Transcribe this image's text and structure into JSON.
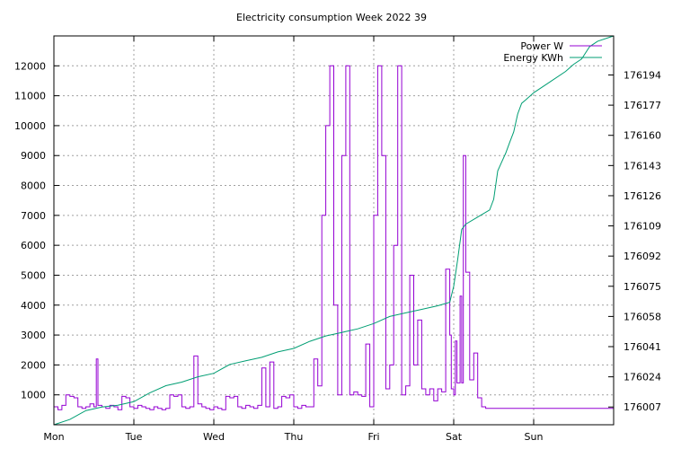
{
  "chart_data": {
    "type": "line",
    "title": "Electricity consumption Week 2022 39",
    "x_tick_labels": [
      "Mon",
      "Tue",
      "Wed",
      "Thu",
      "Fri",
      "Sat",
      "Sun"
    ],
    "x_range_days": [
      0,
      7
    ],
    "y_left": {
      "ticks": [
        1000,
        2000,
        3000,
        4000,
        5000,
        6000,
        7000,
        8000,
        9000,
        10000,
        11000,
        12000
      ],
      "ylim": [
        0,
        13000
      ]
    },
    "y_right": {
      "ticks": [
        176007,
        176024,
        176041,
        176058,
        176075,
        176092,
        176109,
        176126,
        176143,
        176160,
        176177,
        176194
      ],
      "ylim": [
        175997,
        176216
      ]
    },
    "grid": true,
    "legend_position": "top-right",
    "series": [
      {
        "name": "Power W",
        "axis": "left",
        "color": "#9400d3",
        "x_days": [
          0.0,
          0.05,
          0.1,
          0.15,
          0.2,
          0.25,
          0.3,
          0.35,
          0.4,
          0.45,
          0.5,
          0.53,
          0.55,
          0.6,
          0.65,
          0.7,
          0.75,
          0.8,
          0.85,
          0.9,
          0.95,
          1.0,
          1.05,
          1.1,
          1.15,
          1.2,
          1.25,
          1.3,
          1.35,
          1.4,
          1.45,
          1.5,
          1.55,
          1.6,
          1.65,
          1.7,
          1.75,
          1.8,
          1.85,
          1.9,
          1.95,
          2.0,
          2.05,
          2.1,
          2.15,
          2.2,
          2.25,
          2.3,
          2.35,
          2.4,
          2.45,
          2.5,
          2.55,
          2.6,
          2.65,
          2.7,
          2.75,
          2.8,
          2.85,
          2.9,
          2.95,
          3.0,
          3.05,
          3.1,
          3.15,
          3.2,
          3.25,
          3.3,
          3.35,
          3.4,
          3.45,
          3.5,
          3.55,
          3.6,
          3.65,
          3.7,
          3.75,
          3.8,
          3.85,
          3.9,
          3.95,
          4.0,
          4.05,
          4.1,
          4.15,
          4.2,
          4.25,
          4.3,
          4.35,
          4.4,
          4.45,
          4.5,
          4.55,
          4.6,
          4.65,
          4.7,
          4.75,
          4.8,
          4.85,
          4.9,
          4.95,
          4.97,
          5.0,
          5.02,
          5.04,
          5.06,
          5.08,
          5.1,
          5.12,
          5.15,
          5.2,
          5.25,
          5.3,
          5.35,
          5.4,
          5.45,
          5.5,
          5.55,
          5.6,
          5.65,
          5.7,
          5.75,
          5.8,
          5.85,
          5.9,
          5.95,
          6.0,
          6.05,
          6.1,
          6.15,
          6.2,
          6.25,
          6.3,
          6.35,
          6.4,
          6.45,
          6.5,
          6.55,
          6.6,
          6.65,
          6.7,
          6.75,
          6.8,
          6.85,
          6.9,
          6.95,
          7.0
        ],
        "values": [
          600,
          500,
          650,
          1000,
          950,
          900,
          600,
          550,
          600,
          700,
          600,
          2200,
          650,
          600,
          550,
          650,
          600,
          500,
          950,
          900,
          600,
          550,
          650,
          600,
          550,
          500,
          600,
          550,
          500,
          550,
          1000,
          950,
          1000,
          600,
          550,
          600,
          2300,
          700,
          600,
          550,
          500,
          600,
          550,
          500,
          950,
          900,
          950,
          600,
          550,
          650,
          600,
          550,
          650,
          1900,
          600,
          2100,
          550,
          600,
          950,
          900,
          1000,
          600,
          550,
          650,
          600,
          600,
          2200,
          1300,
          7000,
          10000,
          12000,
          4000,
          1000,
          9000,
          12000,
          1000,
          1100,
          1000,
          950,
          2700,
          600,
          7000,
          12000,
          9000,
          1200,
          2000,
          6000,
          12000,
          1000,
          1300,
          5000,
          2000,
          3500,
          1200,
          1000,
          1200,
          800,
          1200,
          1100,
          5200,
          3000,
          1200,
          1000,
          2800,
          1400,
          1400,
          4300,
          1400,
          9000,
          5100,
          1500,
          2400,
          900,
          600,
          550,
          550,
          550,
          550,
          550,
          550,
          550,
          550,
          550,
          550,
          550,
          550,
          550,
          550,
          550,
          550,
          550,
          550,
          550,
          550,
          550,
          550,
          550,
          550,
          550,
          550,
          550,
          550,
          550,
          550,
          550,
          550,
          550
        ]
      },
      {
        "name": "Energy KWh",
        "axis": "right",
        "color": "#009e73",
        "x_days": [
          0.0,
          0.2,
          0.4,
          0.6,
          0.8,
          1.0,
          1.2,
          1.4,
          1.6,
          1.8,
          2.0,
          2.2,
          2.4,
          2.6,
          2.8,
          3.0,
          3.2,
          3.4,
          3.6,
          3.8,
          4.0,
          4.2,
          4.4,
          4.6,
          4.8,
          4.95,
          5.0,
          5.05,
          5.1,
          5.15,
          5.3,
          5.45,
          5.5,
          5.55,
          5.6,
          5.65,
          5.7,
          5.75,
          5.8,
          5.85,
          5.9,
          6.0,
          6.2,
          6.4,
          6.5,
          6.6,
          6.7,
          6.8,
          7.0
        ],
        "values": [
          175997,
          176000,
          176005,
          176007,
          176008,
          176010,
          176015,
          176019,
          176021,
          176024,
          176026,
          176031,
          176033,
          176035,
          176038,
          176040,
          176044,
          176047,
          176049,
          176051,
          176054,
          176058,
          176060,
          176062,
          176064,
          176066,
          176075,
          176090,
          176107,
          176110,
          176114,
          176118,
          176124,
          176140,
          176145,
          176150,
          176156,
          176162,
          176172,
          176178,
          176180,
          176184,
          176190,
          176196,
          176200,
          176203,
          176210,
          176213,
          176216
        ]
      }
    ]
  }
}
